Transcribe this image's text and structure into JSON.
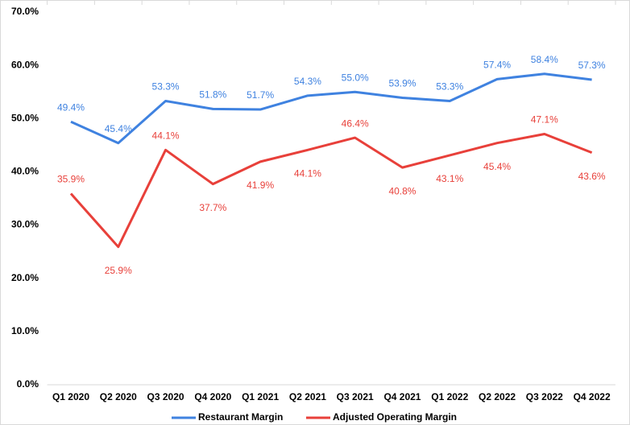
{
  "chart_data": {
    "type": "line",
    "categories": [
      "Q1 2020",
      "Q2 2020",
      "Q3 2020",
      "Q4 2020",
      "Q1 2021",
      "Q2 2021",
      "Q3 2021",
      "Q4 2021",
      "Q1 2022",
      "Q2 2022",
      "Q3 2022",
      "Q4 2022"
    ],
    "series": [
      {
        "name": "Restaurant Margin",
        "color": "#3f82e0",
        "values": [
          49.4,
          45.4,
          53.3,
          51.8,
          51.7,
          54.3,
          55.0,
          53.9,
          53.3,
          57.4,
          58.4,
          57.3
        ],
        "value_labels": [
          "49.4%",
          "45.4%",
          "53.3%",
          "51.8%",
          "51.7%",
          "54.3%",
          "55.0%",
          "53.9%",
          "53.3%",
          "57.4%",
          "58.4%",
          "57.3%"
        ]
      },
      {
        "name": "Adjusted Operating Margin",
        "color": "#e8403a",
        "values": [
          35.9,
          25.9,
          44.1,
          37.7,
          41.9,
          44.1,
          46.4,
          40.8,
          43.1,
          45.4,
          47.1,
          43.6
        ],
        "value_labels": [
          "35.9%",
          "25.9%",
          "44.1%",
          "37.7%",
          "41.9%",
          "44.1%",
          "46.4%",
          "40.8%",
          "43.1%",
          "45.4%",
          "47.1%",
          "43.6%"
        ]
      }
    ],
    "ylim": [
      0,
      70
    ],
    "yticks": [
      {
        "value": 0,
        "label": "0.0%"
      },
      {
        "value": 10,
        "label": "10.0%"
      },
      {
        "value": 20,
        "label": "20.0%"
      },
      {
        "value": 30,
        "label": "30.0%"
      },
      {
        "value": 40,
        "label": "40.0%"
      },
      {
        "value": 50,
        "label": "50.0%"
      },
      {
        "value": 60,
        "label": "60.0%"
      },
      {
        "value": 70,
        "label": "70.0%"
      }
    ],
    "grid": false,
    "legend": "bottom"
  }
}
